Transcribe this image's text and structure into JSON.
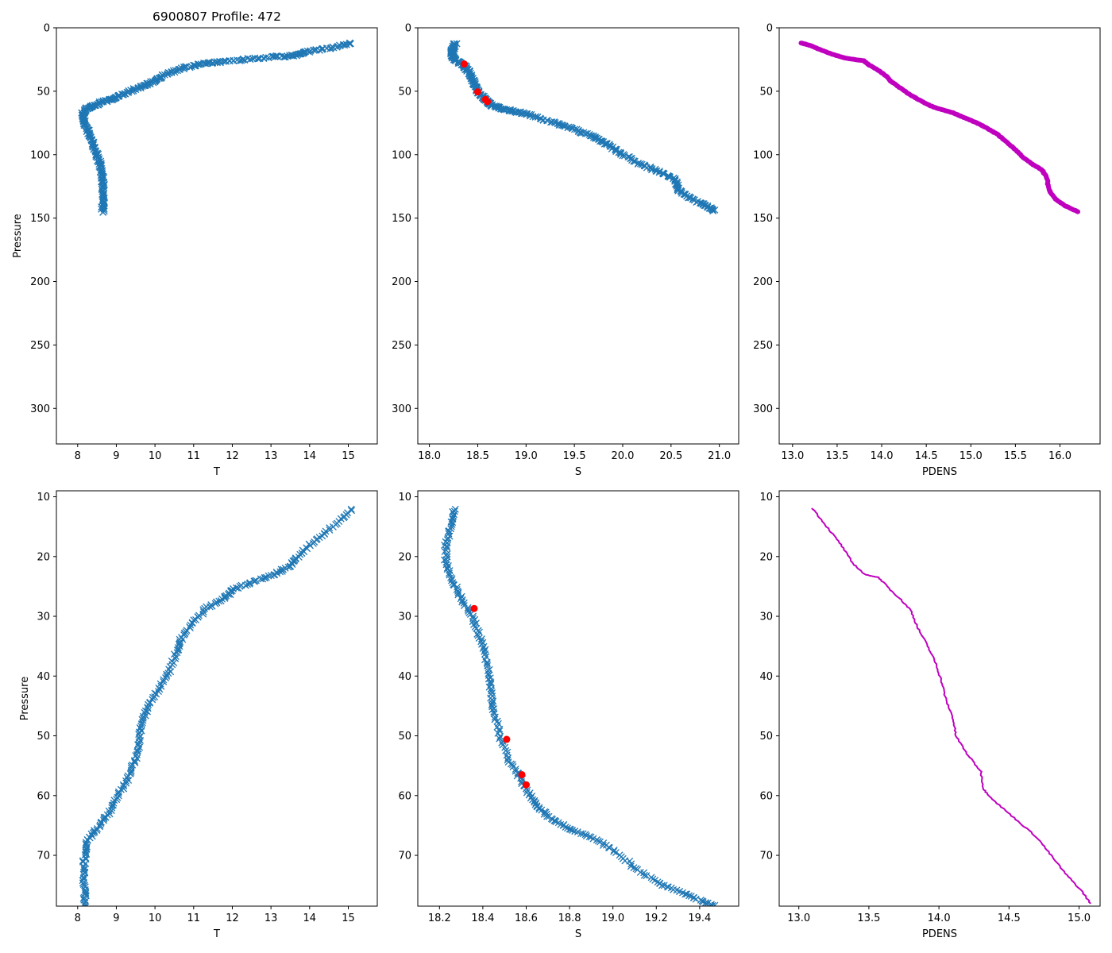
{
  "figure": {
    "title": "6900807 Profile: 472",
    "colors": {
      "profile": "#1f77b4",
      "flag": "#ff0000",
      "density": "#bf00bf",
      "axis": "#000000"
    }
  },
  "chart_data": [
    {
      "id": "temp_full",
      "type": "scatter",
      "title": "6900807 Profile: 472",
      "xlabel": "T",
      "ylabel": "Pressure",
      "xlim": [
        7.45,
        15.75
      ],
      "ylim": [
        328,
        0
      ],
      "y_inverted": true,
      "xticks": [
        8,
        9,
        10,
        11,
        12,
        13,
        14,
        15
      ],
      "yticks": [
        0,
        50,
        100,
        150,
        200,
        250,
        300
      ],
      "series": [
        {
          "name": "T",
          "marker": "x",
          "color": "#1f77b4",
          "x": [
            15.1,
            14.5,
            13.9,
            13.6,
            13.0,
            12.3,
            11.6,
            11.1,
            10.6,
            10.2,
            9.9,
            9.6,
            9.2,
            8.9,
            8.6,
            8.4,
            8.2,
            8.13,
            8.15,
            8.22,
            8.3,
            8.4,
            8.5,
            8.58,
            8.63,
            8.66,
            8.66,
            8.65
          ],
          "y": [
            12,
            16,
            19,
            22,
            23,
            25,
            27,
            29,
            33,
            38,
            43,
            47,
            52,
            56,
            59,
            62,
            64,
            68,
            72,
            78,
            85,
            92,
            100,
            108,
            116,
            125,
            135,
            145
          ]
        }
      ]
    },
    {
      "id": "sal_full",
      "type": "scatter",
      "xlabel": "S",
      "ylabel": "",
      "xlim": [
        17.88,
        21.2
      ],
      "ylim": [
        328,
        0
      ],
      "y_inverted": true,
      "xticks": [
        18.0,
        18.5,
        19.0,
        19.5,
        20.0,
        20.5,
        21.0
      ],
      "yticks": [
        0,
        50,
        100,
        150,
        200,
        250,
        300
      ],
      "series": [
        {
          "name": "S",
          "marker": "x",
          "color": "#1f77b4",
          "x": [
            18.27,
            18.25,
            18.23,
            18.25,
            18.3,
            18.36,
            18.4,
            18.44,
            18.47,
            18.5,
            18.56,
            18.6,
            18.64,
            18.75,
            18.9,
            19.05,
            19.3,
            19.5,
            19.7,
            19.85,
            20.0,
            20.2,
            20.4,
            20.55,
            20.58,
            20.7,
            20.85,
            20.95
          ],
          "y": [
            12,
            16,
            20,
            24,
            27,
            30,
            34,
            40,
            45,
            50,
            55,
            58,
            61,
            64,
            66,
            69,
            75,
            80,
            86,
            92,
            100,
            108,
            114,
            120,
            128,
            134,
            140,
            144
          ]
        },
        {
          "name": "flagged",
          "marker": "o",
          "color": "#ff0000",
          "x": [
            18.36,
            18.5,
            18.58,
            18.6
          ],
          "y": [
            28.5,
            50.5,
            56.5,
            58.2
          ]
        }
      ]
    },
    {
      "id": "dens_full",
      "type": "line",
      "xlabel": "PDENS",
      "ylabel": "",
      "xlim": [
        12.85,
        16.45
      ],
      "ylim": [
        328,
        0
      ],
      "y_inverted": true,
      "xticks": [
        13.0,
        13.5,
        14.0,
        14.5,
        15.0,
        15.5,
        16.0
      ],
      "yticks": [
        0,
        50,
        100,
        150,
        200,
        250,
        300
      ],
      "series": [
        {
          "name": "PDENS",
          "color": "#bf00bf",
          "x": [
            13.1,
            13.2,
            13.3,
            13.45,
            13.55,
            13.6,
            13.8,
            13.85,
            13.95,
            14.05,
            14.1,
            14.2,
            14.3,
            14.4,
            14.5,
            14.6,
            14.7,
            14.8,
            14.9,
            15.0,
            15.1,
            15.2,
            15.3,
            15.4,
            15.5,
            15.6,
            15.7,
            15.8,
            15.85,
            15.88,
            15.95,
            16.05,
            16.2
          ],
          "y": [
            12,
            14,
            17,
            21,
            23,
            24,
            26,
            29,
            33,
            38,
            42,
            47,
            52,
            56,
            60,
            63,
            65,
            67,
            70,
            73,
            76,
            80,
            84,
            90,
            96,
            103,
            108,
            112,
            118,
            128,
            135,
            140,
            145
          ]
        }
      ]
    },
    {
      "id": "temp_zoom",
      "type": "scatter",
      "xlabel": "T",
      "ylabel": "Pressure",
      "xlim": [
        7.45,
        15.75
      ],
      "ylim": [
        78.5,
        9
      ],
      "y_inverted": true,
      "xticks": [
        8,
        9,
        10,
        11,
        12,
        13,
        14,
        15
      ],
      "yticks": [
        10,
        20,
        30,
        40,
        50,
        60,
        70
      ],
      "series": [
        {
          "name": "T",
          "marker": "x",
          "color": "#1f77b4",
          "x": [
            15.1,
            14.6,
            14.1,
            13.7,
            13.5,
            13.1,
            12.6,
            12.05,
            11.8,
            11.35,
            11.0,
            10.7,
            10.55,
            10.35,
            10.05,
            9.8,
            9.65,
            9.6,
            9.5,
            9.3,
            9.05,
            8.8,
            8.5,
            8.25,
            8.18,
            8.15,
            8.17,
            8.2
          ],
          "y": [
            12,
            15,
            17.5,
            20,
            21.5,
            23,
            24,
            25.5,
            27,
            28.5,
            31,
            33.5,
            36,
            39.5,
            42.5,
            45.5,
            48,
            51,
            54,
            57,
            60,
            63,
            65.5,
            67.5,
            70,
            73,
            76,
            78.5
          ]
        }
      ]
    },
    {
      "id": "sal_zoom",
      "type": "scatter",
      "xlabel": "S",
      "ylabel": "",
      "xlim": [
        18.1,
        19.58
      ],
      "ylim": [
        78.5,
        9
      ],
      "y_inverted": true,
      "xticks": [
        18.2,
        18.4,
        18.6,
        18.8,
        19.0,
        19.2,
        19.4
      ],
      "yticks": [
        10,
        20,
        30,
        40,
        50,
        60,
        70
      ],
      "series": [
        {
          "name": "S",
          "marker": "x",
          "color": "#1f77b4",
          "x": [
            18.27,
            18.25,
            18.23,
            18.23,
            18.26,
            18.3,
            18.35,
            18.38,
            18.41,
            18.43,
            18.44,
            18.45,
            18.48,
            18.52,
            18.57,
            18.62,
            18.66,
            18.72,
            18.8,
            18.9,
            19.0,
            19.1,
            19.2,
            19.3,
            19.4,
            19.47
          ],
          "y": [
            12,
            15,
            18,
            21,
            24,
            27,
            30,
            33,
            36,
            40,
            43,
            46,
            50,
            54,
            57,
            60,
            62,
            64,
            65.5,
            67,
            69,
            72,
            74.5,
            76,
            77.5,
            78.5
          ]
        },
        {
          "name": "flagged",
          "marker": "o",
          "color": "#ff0000",
          "x": [
            18.36,
            18.51,
            18.58,
            18.6
          ],
          "y": [
            28.7,
            50.6,
            56.5,
            58.2
          ]
        }
      ]
    },
    {
      "id": "dens_zoom",
      "type": "line",
      "xlabel": "PDENS",
      "ylabel": "",
      "xlim": [
        12.86,
        15.15
      ],
      "ylim": [
        78.5,
        9
      ],
      "y_inverted": true,
      "xticks": [
        13.0,
        13.5,
        14.0,
        14.5,
        15.0
      ],
      "yticks": [
        10,
        20,
        30,
        40,
        50,
        60,
        70
      ],
      "series": [
        {
          "name": "PDENS",
          "color": "#bf00bf",
          "x": [
            13.1,
            13.2,
            13.3,
            13.38,
            13.47,
            13.57,
            13.65,
            13.72,
            13.8,
            13.85,
            13.92,
            13.98,
            14.02,
            14.05,
            14.1,
            14.12,
            14.2,
            14.3,
            14.32,
            14.4,
            14.55,
            14.7,
            14.8,
            14.9,
            15.02,
            15.08
          ],
          "y": [
            12,
            15,
            18,
            21,
            23,
            23.5,
            25.5,
            27,
            29,
            32,
            35,
            38,
            41,
            44,
            47,
            50,
            53,
            56,
            59,
            61,
            64,
            67,
            70,
            73,
            76,
            78
          ]
        }
      ]
    }
  ]
}
